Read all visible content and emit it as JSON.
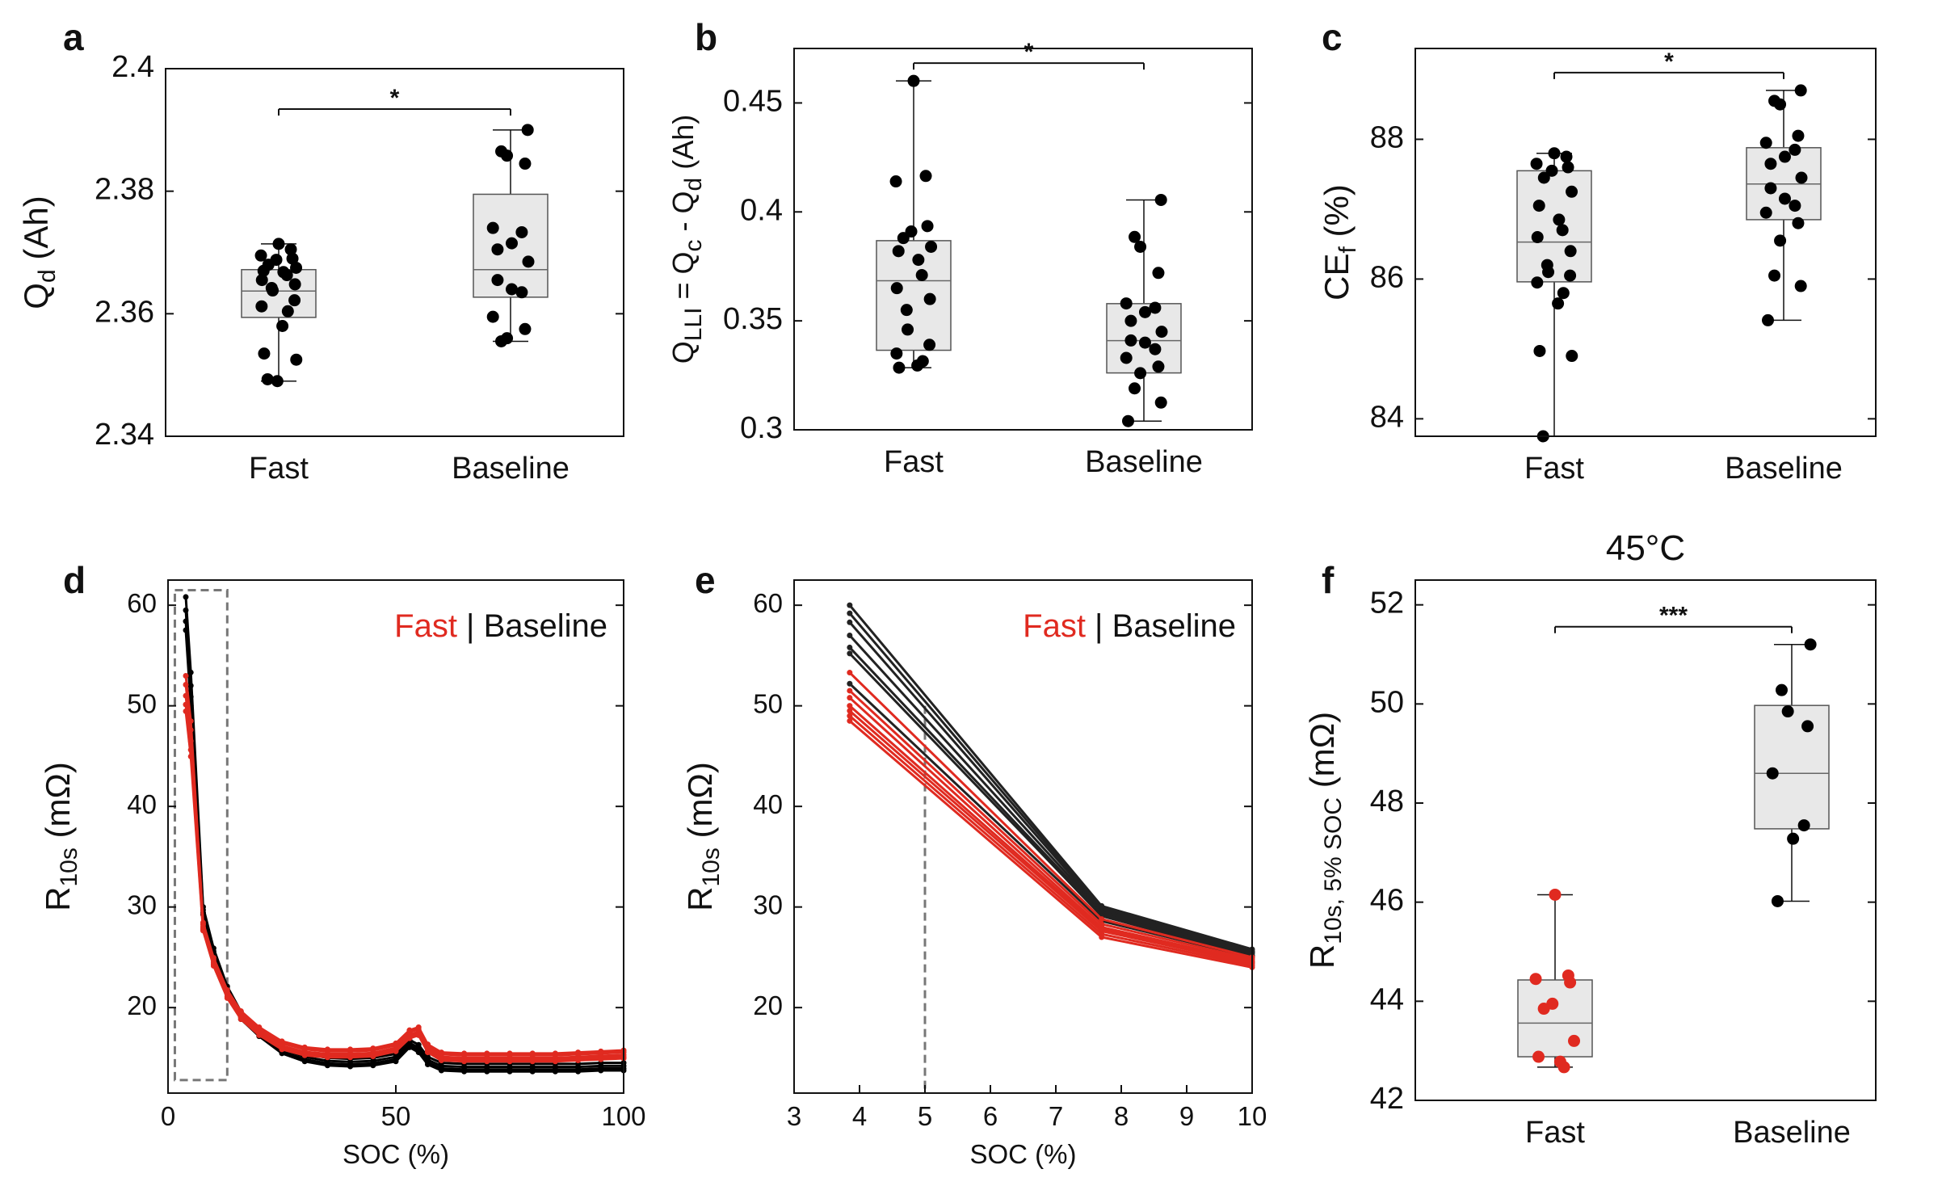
{
  "figure": {
    "panels": [
      "a",
      "b",
      "c",
      "d",
      "e",
      "f"
    ]
  },
  "chart_data": [
    {
      "panel": "a",
      "type": "box",
      "ylabel": "Q",
      "ylabel_sub": "d",
      "ylabel_suffix": " (Ah)",
      "categories": [
        "Fast",
        "Baseline"
      ],
      "ylim": [
        2.34,
        2.4
      ],
      "yticks": [
        2.34,
        2.36,
        2.38,
        2.4
      ],
      "yticklabels": [
        "2.34",
        "2.36",
        "2.38",
        "2.4"
      ],
      "significance": "*",
      "boxes": [
        {
          "group": "Fast",
          "min": 2.349,
          "q1": 2.3594,
          "median": 2.3637,
          "q3": 2.3672,
          "max": 2.3714
        },
        {
          "group": "Baseline",
          "min": 2.3555,
          "q1": 2.3627,
          "median": 2.3672,
          "q3": 2.3795,
          "max": 2.39
        }
      ],
      "points": [
        {
          "group": "Fast",
          "values": [
            2.3714,
            2.3705,
            2.3695,
            2.369,
            2.3688,
            2.368,
            2.3675,
            2.367,
            2.3668,
            2.3663,
            2.3655,
            2.3648,
            2.3642,
            2.3638,
            2.3622,
            2.3612,
            2.3604,
            2.358,
            2.3535,
            2.3525,
            2.3493,
            2.349
          ]
        },
        {
          "group": "Baseline",
          "values": [
            2.39,
            2.3865,
            2.3858,
            2.3845,
            2.374,
            2.3733,
            2.3715,
            2.3705,
            2.3685,
            2.3655,
            2.364,
            2.3635,
            2.3595,
            2.3575,
            2.356,
            2.3555
          ]
        }
      ]
    },
    {
      "panel": "b",
      "type": "box",
      "ylabel": "Q",
      "ylabel_sub": "LLI",
      "ylabel_mid": " = Q",
      "ylabel_sub2": "c",
      "ylabel_mid2": " - Q",
      "ylabel_sub3": "d",
      "ylabel_suffix": " (Ah)",
      "categories": [
        "Fast",
        "Baseline"
      ],
      "ylim": [
        0.3,
        0.475
      ],
      "yticks": [
        0.3,
        0.35,
        0.4,
        0.45
      ],
      "yticklabels": [
        "0.3",
        "0.35",
        "0.4",
        "0.45"
      ],
      "significance": "*",
      "boxes": [
        {
          "group": "Fast",
          "min": 0.3285,
          "q1": 0.3365,
          "median": 0.3684,
          "q3": 0.3868,
          "max": 0.4601
        },
        {
          "group": "Baseline",
          "min": 0.304,
          "q1": 0.3261,
          "median": 0.3409,
          "q3": 0.3579,
          "max": 0.4055
        }
      ],
      "points": [
        {
          "group": "Fast",
          "values": [
            0.4601,
            0.4165,
            0.414,
            0.3935,
            0.391,
            0.388,
            0.384,
            0.382,
            0.378,
            0.371,
            0.365,
            0.36,
            0.355,
            0.346,
            0.339,
            0.335,
            0.3315,
            0.3295,
            0.3285
          ]
        },
        {
          "group": "Baseline",
          "values": [
            0.4055,
            0.3885,
            0.384,
            0.372,
            0.358,
            0.356,
            0.354,
            0.35,
            0.345,
            0.341,
            0.34,
            0.337,
            0.333,
            0.329,
            0.326,
            0.319,
            0.3125,
            0.304
          ]
        }
      ]
    },
    {
      "panel": "c",
      "type": "box",
      "ylabel": "CE",
      "ylabel_sub": "f",
      "ylabel_suffix": " (%)",
      "categories": [
        "Fast",
        "Baseline"
      ],
      "ylim": [
        83.75,
        89.3
      ],
      "yticks": [
        84,
        86,
        88
      ],
      "yticklabels": [
        "84",
        "86",
        "88"
      ],
      "significance": "*",
      "boxes": [
        {
          "group": "Fast",
          "min": 83.75,
          "q1": 85.96,
          "median": 86.53,
          "q3": 87.55,
          "max": 87.8
        },
        {
          "group": "Baseline",
          "min": 85.41,
          "q1": 86.85,
          "median": 87.36,
          "q3": 87.88,
          "max": 88.7
        }
      ],
      "points": [
        {
          "group": "Fast",
          "values": [
            87.8,
            87.75,
            87.65,
            87.6,
            87.55,
            87.45,
            87.25,
            87.05,
            86.85,
            86.7,
            86.6,
            86.4,
            86.2,
            86.1,
            86.05,
            85.95,
            85.8,
            85.65,
            84.97,
            84.9,
            83.75
          ]
        },
        {
          "group": "Baseline",
          "values": [
            88.7,
            88.55,
            88.5,
            88.05,
            87.95,
            87.85,
            87.75,
            87.65,
            87.45,
            87.3,
            87.15,
            87.05,
            86.95,
            86.8,
            86.55,
            86.05,
            85.9,
            85.41
          ]
        }
      ]
    },
    {
      "panel": "d",
      "type": "line",
      "xlabel": "SOC (%)",
      "ylabel": "R",
      "ylabel_sub": "10s",
      "ylabel_suffix": " (mΩ)",
      "xlim": [
        0,
        100
      ],
      "ylim": [
        11.5,
        62.5
      ],
      "xticks": [
        0,
        50,
        100
      ],
      "xticklabels": [
        "0",
        "50",
        "100"
      ],
      "yticks": [
        20,
        30,
        40,
        50,
        60
      ],
      "yticklabels": [
        "20",
        "30",
        "40",
        "50",
        "60"
      ],
      "legend": {
        "fast": "Fast",
        "sep": " | ",
        "baseline": "Baseline"
      },
      "highlight_box": {
        "x": [
          1.5,
          13
        ],
        "y": [
          12.8,
          61.5
        ]
      },
      "series": [
        {
          "name": "Baseline",
          "color": "#000000",
          "x": [
            3.9,
            5,
            7.7,
            10,
            13,
            16,
            20,
            25,
            30,
            35,
            40,
            45,
            50,
            53,
            55,
            57,
            60,
            65,
            70,
            75,
            80,
            85,
            90,
            95,
            100
          ],
          "y": [
            59.5,
            52,
            29.7,
            25.6,
            21.8,
            19.3,
            17.6,
            15.9,
            15.1,
            14.7,
            14.6,
            14.7,
            15.1,
            16.5,
            16.0,
            14.8,
            14.2,
            14.1,
            14.1,
            14.1,
            14.1,
            14.1,
            14.1,
            14.2,
            14.2
          ]
        },
        {
          "name": "Fast",
          "color": "#e02a20",
          "x": [
            3.9,
            5,
            7.7,
            10,
            13,
            16,
            20,
            25,
            30,
            35,
            40,
            45,
            50,
            53,
            55,
            57,
            60,
            65,
            70,
            75,
            80,
            85,
            90,
            95,
            100
          ],
          "y": [
            51.0,
            46.5,
            28.0,
            24.5,
            21.3,
            19.2,
            17.6,
            16.2,
            15.6,
            15.4,
            15.4,
            15.5,
            16.0,
            17.3,
            17.6,
            15.9,
            15.1,
            15.0,
            15.0,
            15.0,
            15.0,
            15.0,
            15.1,
            15.2,
            15.3
          ]
        }
      ]
    },
    {
      "panel": "e",
      "type": "line",
      "xlabel": "SOC (%)",
      "ylabel": "R",
      "ylabel_sub": "10s",
      "ylabel_suffix": " (mΩ)",
      "xlim": [
        3,
        10
      ],
      "ylim": [
        11.5,
        62.5
      ],
      "xticks": [
        3,
        4,
        5,
        6,
        7,
        8,
        9,
        10
      ],
      "xticklabels": [
        "3",
        "4",
        "5",
        "6",
        "7",
        "8",
        "9",
        "10"
      ],
      "yticks": [
        20,
        30,
        40,
        50,
        60
      ],
      "yticklabels": [
        "20",
        "30",
        "40",
        "50",
        "60"
      ],
      "legend": {
        "fast": "Fast",
        "sep": " | ",
        "baseline": "Baseline"
      },
      "vline_x": 5,
      "x": [
        3.85,
        7.7,
        10
      ],
      "series": [
        {
          "name": "Baseline",
          "color": "#222222",
          "y": [
            60.0,
            30.1,
            25.8
          ]
        },
        {
          "name": "Baseline",
          "color": "#222222",
          "y": [
            59.2,
            29.9,
            25.6
          ]
        },
        {
          "name": "Baseline",
          "color": "#222222",
          "y": [
            58.3,
            29.7,
            25.5
          ]
        },
        {
          "name": "Baseline",
          "color": "#222222",
          "y": [
            57.0,
            29.5,
            25.4
          ]
        },
        {
          "name": "Baseline",
          "color": "#222222",
          "y": [
            55.8,
            29.3,
            25.2
          ]
        },
        {
          "name": "Baseline",
          "color": "#222222",
          "y": [
            55.2,
            29.1,
            25.1
          ]
        },
        {
          "name": "Baseline",
          "color": "#222222",
          "y": [
            52.2,
            28.6,
            25.0
          ]
        },
        {
          "name": "Fast",
          "color": "#e02a20",
          "y": [
            53.3,
            28.8,
            25.0
          ]
        },
        {
          "name": "Fast",
          "color": "#e02a20",
          "y": [
            51.5,
            28.3,
            24.8
          ]
        },
        {
          "name": "Fast",
          "color": "#e02a20",
          "y": [
            50.8,
            28.0,
            24.6
          ]
        },
        {
          "name": "Fast",
          "color": "#e02a20",
          "y": [
            50.0,
            27.8,
            24.5
          ]
        },
        {
          "name": "Fast",
          "color": "#e02a20",
          "y": [
            49.5,
            27.6,
            24.4
          ]
        },
        {
          "name": "Fast",
          "color": "#e02a20",
          "y": [
            49.0,
            27.3,
            24.2
          ]
        },
        {
          "name": "Fast",
          "color": "#e02a20",
          "y": [
            48.5,
            27.0,
            24.0
          ]
        }
      ]
    },
    {
      "panel": "f",
      "type": "box",
      "title": "45°C",
      "ylabel": "R",
      "ylabel_sub": "10s, 5% SOC",
      "ylabel_suffix": " (mΩ)",
      "categories": [
        "Fast",
        "Baseline"
      ],
      "ylim": [
        42,
        52.5
      ],
      "yticks": [
        42,
        44,
        46,
        48,
        50,
        52
      ],
      "yticklabels": [
        "42",
        "44",
        "46",
        "48",
        "50",
        "52"
      ],
      "significance": "***",
      "boxes": [
        {
          "group": "Fast",
          "color": "#e02a20",
          "min": 42.67,
          "q1": 42.88,
          "median": 43.56,
          "q3": 44.43,
          "max": 46.15
        },
        {
          "group": "Baseline",
          "color": "#000000",
          "min": 46.02,
          "q1": 47.48,
          "median": 48.6,
          "q3": 49.97,
          "max": 51.2
        }
      ],
      "points": [
        {
          "group": "Fast",
          "values": [
            46.15,
            44.52,
            44.45,
            44.38,
            43.95,
            43.85,
            43.2,
            42.88,
            42.78,
            42.67
          ]
        },
        {
          "group": "Baseline",
          "values": [
            51.2,
            50.28,
            49.85,
            49.55,
            48.6,
            47.55,
            47.28,
            46.02
          ]
        }
      ]
    }
  ]
}
